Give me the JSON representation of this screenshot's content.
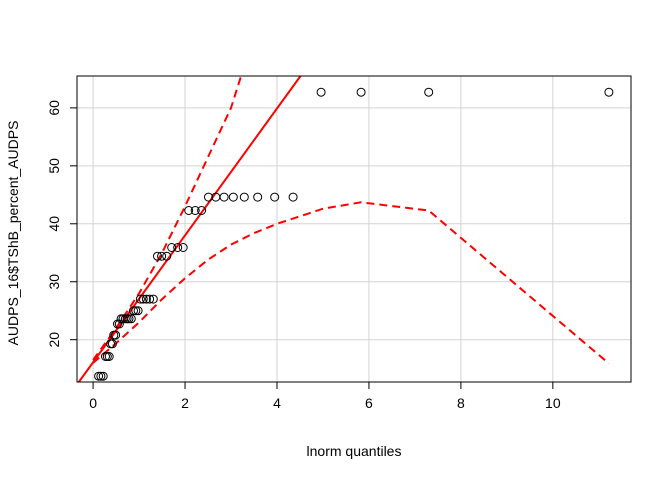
{
  "chart_data": {
    "type": "scatter",
    "title": "",
    "xlabel": "lnorm quantiles",
    "ylabel": "AUDPS_16$TShB_percent_AUDPS",
    "xlim": [
      -0.35,
      11.7
    ],
    "ylim": [
      12.7,
      65.5
    ],
    "xticks": [
      0,
      2,
      4,
      6,
      8,
      10
    ],
    "yticks": [
      20,
      30,
      40,
      50,
      60
    ],
    "grid": true,
    "points": [
      [
        0.12,
        13.7
      ],
      [
        0.17,
        13.7
      ],
      [
        0.22,
        13.7
      ],
      [
        0.27,
        17.1
      ],
      [
        0.31,
        17.1
      ],
      [
        0.35,
        17.1
      ],
      [
        0.38,
        19.3
      ],
      [
        0.42,
        19.3
      ],
      [
        0.45,
        20.8
      ],
      [
        0.49,
        20.8
      ],
      [
        0.53,
        22.7
      ],
      [
        0.57,
        22.7
      ],
      [
        0.61,
        23.6
      ],
      [
        0.65,
        23.6
      ],
      [
        0.7,
        23.6
      ],
      [
        0.74,
        23.6
      ],
      [
        0.78,
        23.6
      ],
      [
        0.83,
        23.6
      ],
      [
        0.88,
        25.0
      ],
      [
        0.93,
        25.0
      ],
      [
        0.98,
        25.0
      ],
      [
        1.03,
        27.0
      ],
      [
        1.09,
        27.0
      ],
      [
        1.16,
        27.0
      ],
      [
        1.23,
        27.0
      ],
      [
        1.31,
        27.0
      ],
      [
        1.4,
        34.4
      ],
      [
        1.49,
        34.4
      ],
      [
        1.6,
        34.4
      ],
      [
        1.71,
        35.9
      ],
      [
        1.84,
        35.9
      ],
      [
        1.96,
        35.9
      ],
      [
        2.08,
        42.3
      ],
      [
        2.22,
        42.3
      ],
      [
        2.36,
        42.3
      ],
      [
        2.51,
        44.6
      ],
      [
        2.67,
        44.6
      ],
      [
        2.85,
        44.6
      ],
      [
        3.05,
        44.6
      ],
      [
        3.29,
        44.6
      ],
      [
        3.58,
        44.6
      ],
      [
        3.95,
        44.6
      ],
      [
        4.35,
        44.6
      ],
      [
        4.96,
        62.7
      ],
      [
        5.83,
        62.7
      ],
      [
        7.3,
        62.7
      ],
      [
        11.22,
        62.7
      ]
    ],
    "fit_line": {
      "intercept": 16.1,
      "slope": 10.95
    },
    "upper_band": [
      [
        0.0,
        16.5
      ],
      [
        0.5,
        22.0
      ],
      [
        1.0,
        28.0
      ],
      [
        1.5,
        35.0
      ],
      [
        2.0,
        43.0
      ],
      [
        2.5,
        51.5
      ],
      [
        3.0,
        60.0
      ],
      [
        3.22,
        65.5
      ]
    ],
    "lower_band": [
      [
        0.0,
        16.0
      ],
      [
        0.5,
        19.4
      ],
      [
        1.0,
        23.0
      ],
      [
        1.5,
        27.0
      ],
      [
        2.0,
        30.6
      ],
      [
        2.5,
        33.8
      ],
      [
        3.0,
        36.4
      ],
      [
        3.5,
        38.4
      ],
      [
        4.0,
        40.0
      ],
      [
        4.5,
        41.3
      ],
      [
        5.0,
        42.6
      ],
      [
        5.83,
        43.7
      ],
      [
        7.3,
        42.3
      ],
      [
        11.22,
        15.9
      ]
    ],
    "colors": {
      "points": "#000000",
      "fit": "#ff0000",
      "band": "#ff0000",
      "grid": "#d3d3d3"
    }
  }
}
